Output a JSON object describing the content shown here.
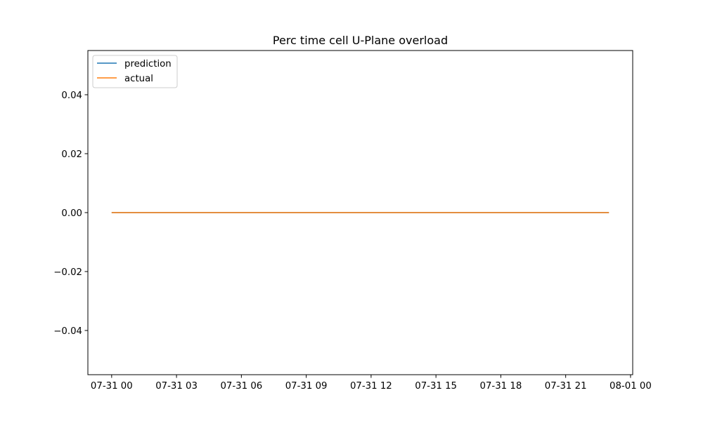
{
  "chart_data": {
    "type": "line",
    "title": "Perc time cell U-Plane overload",
    "xlabel": "",
    "ylabel": "",
    "x_ticks": [
      "07-31 00",
      "07-31 03",
      "07-31 06",
      "07-31 09",
      "07-31 12",
      "07-31 15",
      "07-31 18",
      "07-31 21",
      "08-01 00"
    ],
    "xlim_hours": [
      -1.1,
      24.1
    ],
    "ylim": [
      -0.055,
      0.055
    ],
    "y_ticks": [
      0.04,
      0.02,
      0.0,
      -0.02,
      -0.04
    ],
    "y_tick_labels": [
      "0.04",
      "0.02",
      "0.00",
      "−0.02",
      "−0.04"
    ],
    "grid": false,
    "legend_position": "top-left",
    "series": [
      {
        "name": "prediction",
        "color": "#1f77b4",
        "x_hours": [
          0,
          23
        ],
        "values": [
          0,
          0
        ]
      },
      {
        "name": "actual",
        "color": "#ff7f0e",
        "x_hours": [
          0,
          23
        ],
        "values": [
          0,
          0
        ]
      }
    ]
  }
}
